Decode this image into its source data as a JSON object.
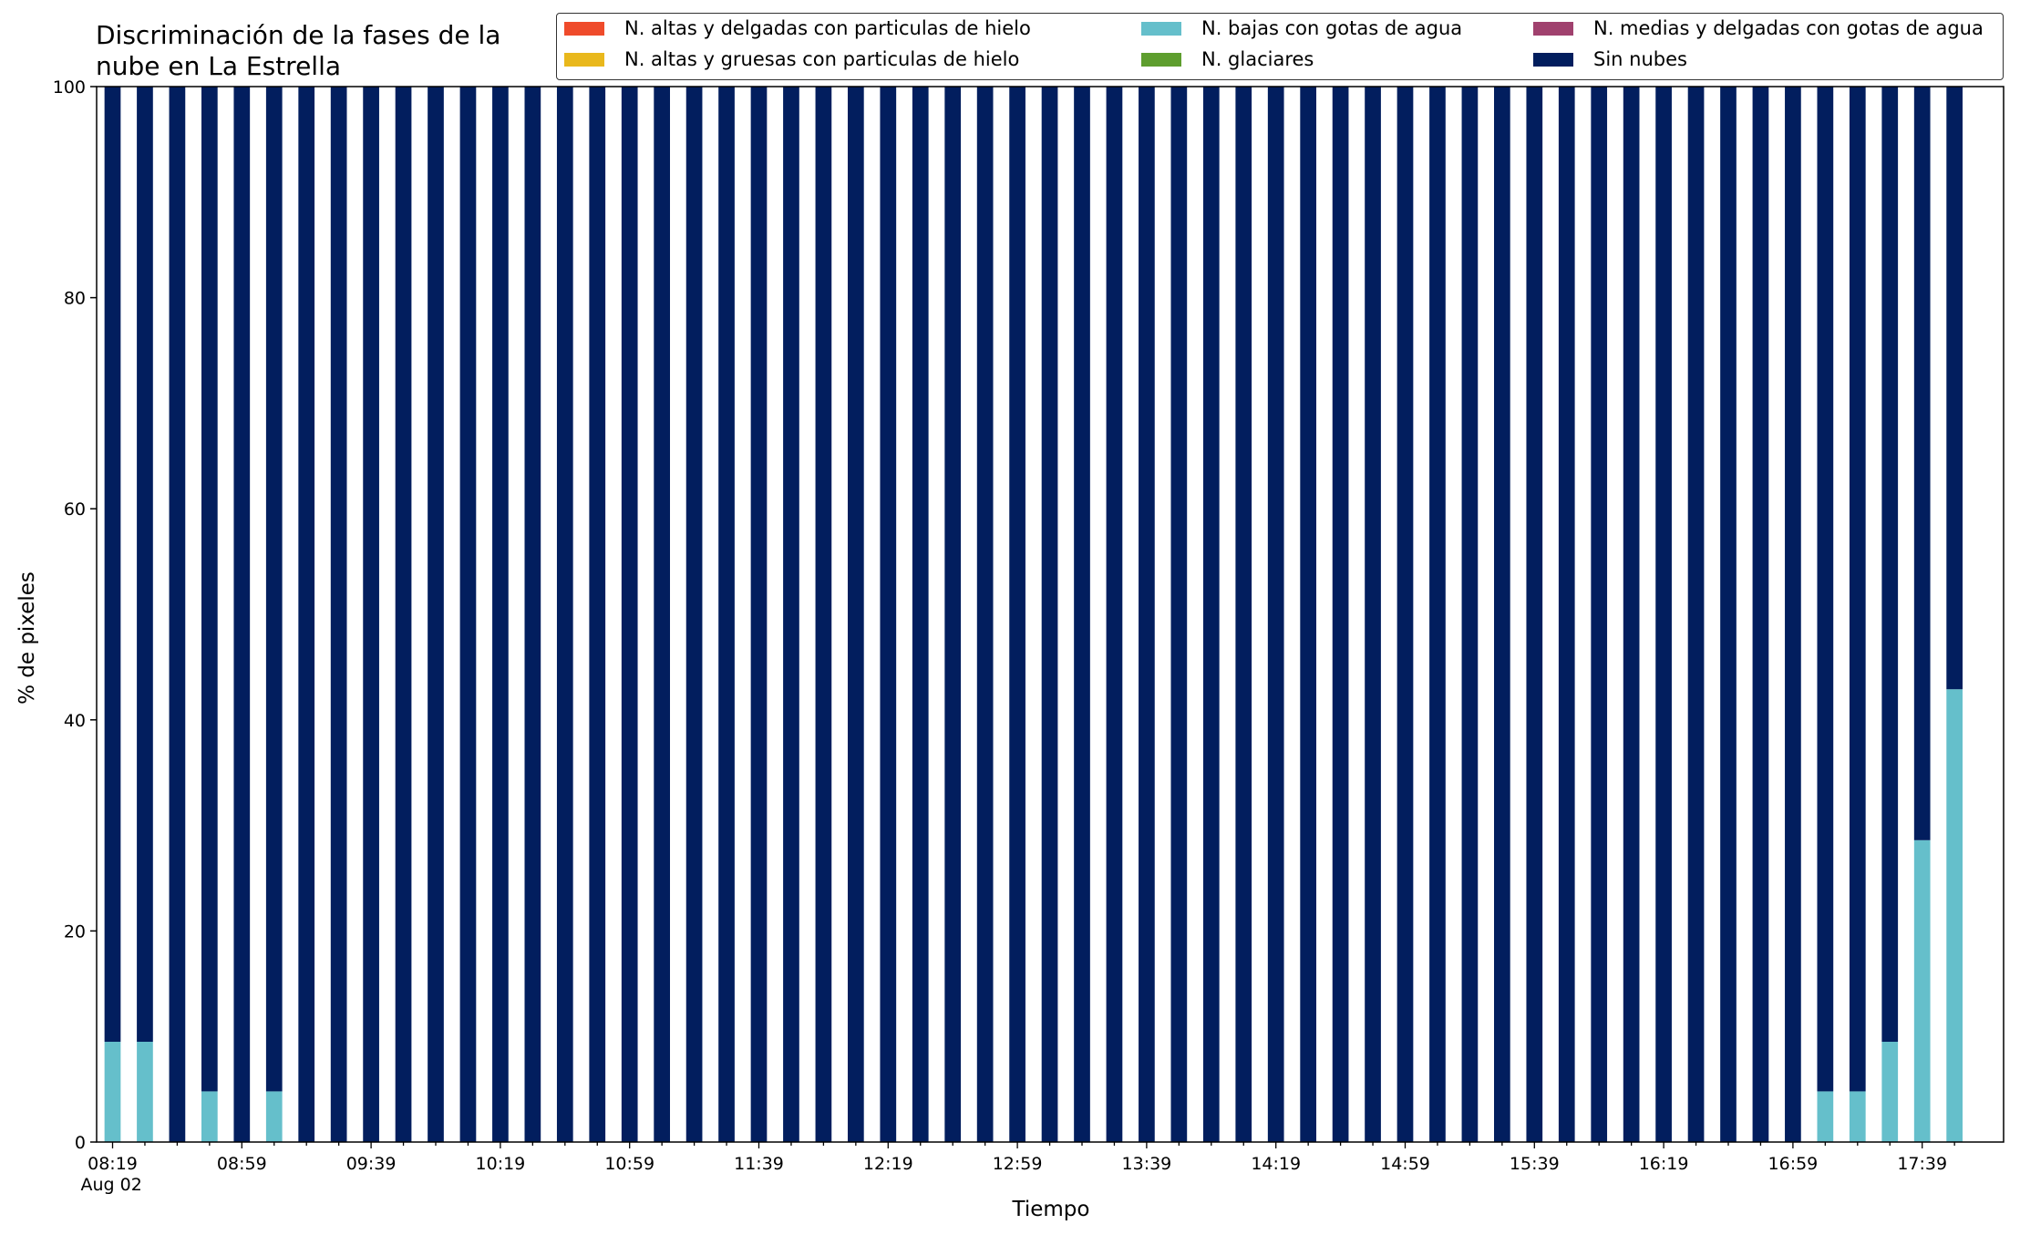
{
  "chart_data": {
    "type": "bar",
    "stacked": true,
    "title": "Discriminación de la fases de la\nnube en La Estrella",
    "xlabel": "Tiempo",
    "ylabel": "% de pixeles",
    "ylim": [
      0,
      100
    ],
    "yticks": [
      0,
      20,
      40,
      60,
      80,
      100
    ],
    "xtick_labels": [
      "08:19\nAug 02",
      "08:59",
      "09:39",
      "10:19",
      "10:59",
      "11:39",
      "12:19",
      "12:59",
      "13:39",
      "14:19",
      "14:59",
      "15:39",
      "16:19",
      "16:59",
      "17:39"
    ],
    "legend_position": "top-right",
    "grid": false,
    "categories": [
      "08:19",
      "08:29",
      "08:39",
      "08:49",
      "08:59",
      "09:09",
      "09:19",
      "09:29",
      "09:39",
      "09:49",
      "09:59",
      "10:09",
      "10:19",
      "10:29",
      "10:39",
      "10:49",
      "10:59",
      "11:09",
      "11:19",
      "11:29",
      "11:39",
      "11:49",
      "11:59",
      "12:09",
      "12:19",
      "12:29",
      "12:39",
      "12:49",
      "12:59",
      "13:09",
      "13:19",
      "13:29",
      "13:39",
      "13:49",
      "13:59",
      "14:09",
      "14:19",
      "14:29",
      "14:39",
      "14:49",
      "14:59",
      "15:09",
      "15:19",
      "15:29",
      "15:39",
      "15:49",
      "15:59",
      "16:09",
      "16:19",
      "16:29",
      "16:39",
      "16:49",
      "16:59",
      "17:09",
      "17:19",
      "17:29",
      "17:39",
      "17:49"
    ],
    "series": [
      {
        "name": "N. altas y delgadas con particulas de hielo",
        "color": "#ef4b2b",
        "values": [
          0,
          0,
          0,
          0,
          0,
          0,
          0,
          0,
          0,
          0,
          0,
          0,
          0,
          0,
          0,
          0,
          0,
          0,
          0,
          0,
          0,
          0,
          0,
          0,
          0,
          0,
          0,
          0,
          0,
          0,
          0,
          0,
          0,
          0,
          0,
          0,
          0,
          0,
          0,
          0,
          0,
          0,
          0,
          0,
          0,
          0,
          0,
          0,
          0,
          0,
          0,
          0,
          0,
          0,
          0,
          0,
          0,
          0
        ]
      },
      {
        "name": "N. altas y gruesas con particulas de hielo",
        "color": "#e9b81c",
        "values": [
          0,
          0,
          0,
          0,
          0,
          0,
          0,
          0,
          0,
          0,
          0,
          0,
          0,
          0,
          0,
          0,
          0,
          0,
          0,
          0,
          0,
          0,
          0,
          0,
          0,
          0,
          0,
          0,
          0,
          0,
          0,
          0,
          0,
          0,
          0,
          0,
          0,
          0,
          0,
          0,
          0,
          0,
          0,
          0,
          0,
          0,
          0,
          0,
          0,
          0,
          0,
          0,
          0,
          0,
          0,
          0,
          0,
          0
        ]
      },
      {
        "name": "N. bajas con gotas de agua",
        "color": "#65bfcb",
        "values": [
          9.5,
          9.5,
          0,
          4.8,
          0,
          4.8,
          0,
          0,
          0,
          0,
          0,
          0,
          0,
          0,
          0,
          0,
          0,
          0,
          0,
          0,
          0,
          0,
          0,
          0,
          0,
          0,
          0,
          0,
          0,
          0,
          0,
          0,
          0,
          0,
          0,
          0,
          0,
          0,
          0,
          0,
          0,
          0,
          0,
          0,
          0,
          0,
          0,
          0,
          0,
          0,
          0,
          0,
          0,
          4.8,
          4.8,
          9.5,
          28.6,
          42.9
        ]
      },
      {
        "name": "N. glaciares",
        "color": "#5e9e2e",
        "values": [
          0,
          0,
          0,
          0,
          0,
          0,
          0,
          0,
          0,
          0,
          0,
          0,
          0,
          0,
          0,
          0,
          0,
          0,
          0,
          0,
          0,
          0,
          0,
          0,
          0,
          0,
          0,
          0,
          0,
          0,
          0,
          0,
          0,
          0,
          0,
          0,
          0,
          0,
          0,
          0,
          0,
          0,
          0,
          0,
          0,
          0,
          0,
          0,
          0,
          0,
          0,
          0,
          0,
          0,
          0,
          0,
          0,
          0
        ]
      },
      {
        "name": "N. medias y delgadas con gotas de agua",
        "color": "#a0416e",
        "values": [
          0,
          0,
          0,
          0,
          0,
          0,
          0,
          0,
          0,
          0,
          0,
          0,
          0,
          0,
          0,
          0,
          0,
          0,
          0,
          0,
          0,
          0,
          0,
          0,
          0,
          0,
          0,
          0,
          0,
          0,
          0,
          0,
          0,
          0,
          0,
          0,
          0,
          0,
          0,
          0,
          0,
          0,
          0,
          0,
          0,
          0,
          0,
          0,
          0,
          0,
          0,
          0,
          0,
          0,
          0,
          0,
          0,
          0
        ]
      },
      {
        "name": "Sin nubes",
        "color": "#021e5e",
        "values": [
          90.5,
          90.5,
          100,
          95.2,
          100,
          95.2,
          100,
          100,
          100,
          100,
          100,
          100,
          100,
          100,
          100,
          100,
          100,
          100,
          100,
          100,
          100,
          100,
          100,
          100,
          100,
          100,
          100,
          100,
          100,
          100,
          100,
          100,
          100,
          100,
          100,
          100,
          100,
          100,
          100,
          100,
          100,
          100,
          100,
          100,
          100,
          100,
          100,
          100,
          100,
          100,
          100,
          100,
          100,
          95.2,
          95.2,
          90.5,
          71.4,
          57.1
        ]
      }
    ]
  }
}
